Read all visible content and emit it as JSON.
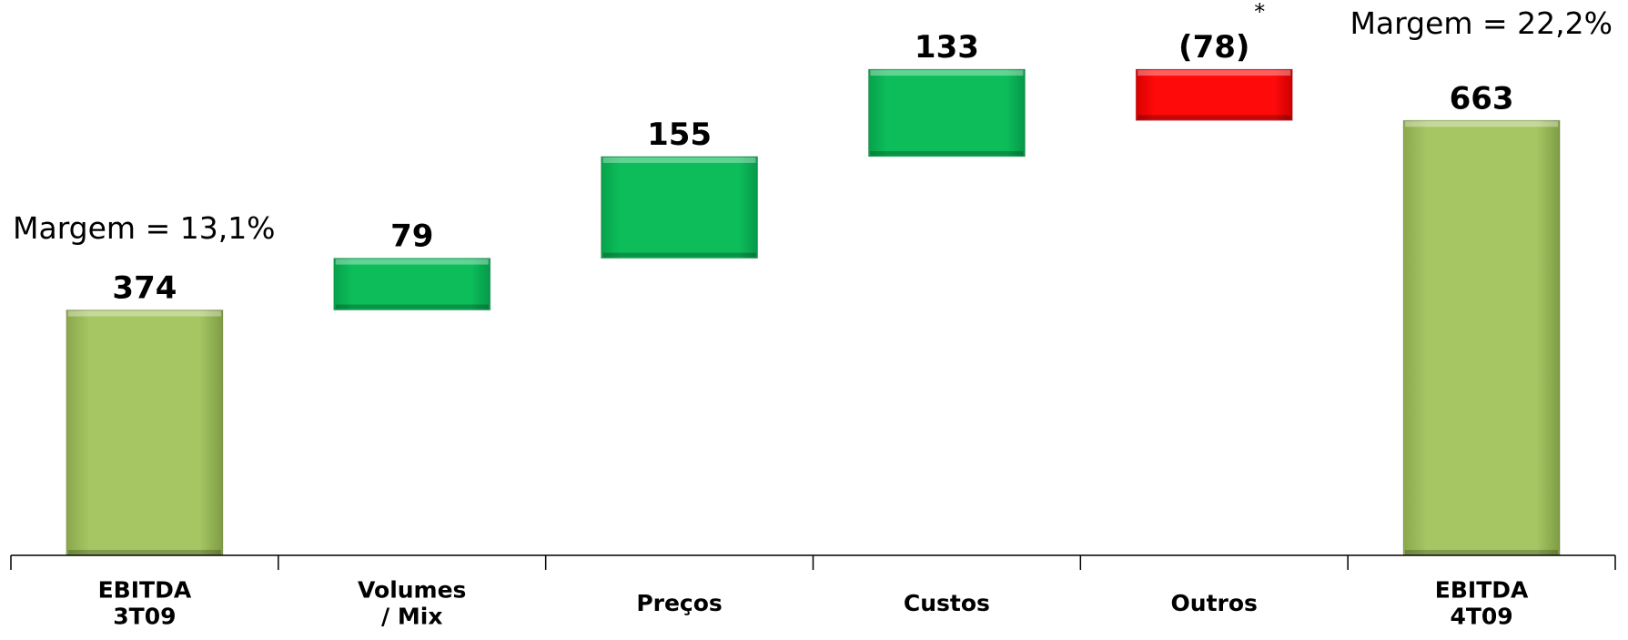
{
  "chart_data": {
    "type": "bar",
    "subtype": "waterfall",
    "categories": [
      [
        "EBITDA",
        "3T09"
      ],
      [
        "Volumes",
        "/ Mix"
      ],
      [
        "Preços"
      ],
      [
        "Custos"
      ],
      [
        "Outros"
      ],
      [
        "EBITDA",
        "4T09"
      ]
    ],
    "values": [
      374,
      79,
      155,
      133,
      -78,
      663
    ],
    "bar_kinds": [
      "total",
      "increase",
      "increase",
      "increase",
      "decrease",
      "total"
    ],
    "value_labels": [
      "374",
      "79",
      "155",
      "133",
      "(78)",
      "663"
    ],
    "annotations": {
      "start_margin": "Margem = 13,1%",
      "end_margin": "Margem = 22,2%",
      "footnote_mark": "*"
    },
    "colors": {
      "total": "#a4c462",
      "increase": "#0cbd5a",
      "decrease": "#ff0000",
      "axis": "#000000"
    },
    "title": "",
    "xlabel": "",
    "ylabel": "",
    "grid": false,
    "legend": "none"
  }
}
